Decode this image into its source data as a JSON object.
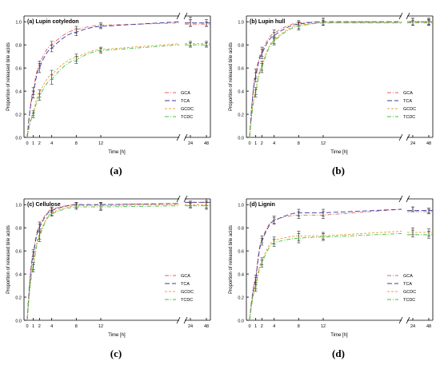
{
  "chart_data": [
    {
      "type": "line",
      "title": "(a) Lupin cotyledon",
      "caption": "(a)",
      "xlabel": "Time [h]",
      "ylabel": "Proportion of released bile acids",
      "x_ticks": [
        "0",
        "1",
        "2",
        "4",
        "8",
        "12",
        "24",
        "48"
      ],
      "y_ticks": [
        "0.0",
        "0.2",
        "0.4",
        "0.6",
        "0.8",
        "1.0"
      ],
      "ylim": [
        0,
        1.05
      ],
      "axis_break": true,
      "legend_position": "bottom-right",
      "series": [
        {
          "name": "GCA",
          "color": "#e0605e",
          "dash": "dash-dot",
          "x": [
            0,
            1,
            2,
            4,
            8,
            12,
            24,
            48
          ],
          "y": [
            0.0,
            0.4,
            0.63,
            0.8,
            0.93,
            0.97,
            0.99,
            0.98
          ],
          "err": [
            0.02,
            0.03,
            0.03,
            0.03,
            0.03,
            0.02,
            0.03,
            0.02
          ]
        },
        {
          "name": "TCA",
          "color": "#3b3b9e",
          "dash": "long-dash",
          "x": [
            0,
            1,
            2,
            4,
            8,
            12,
            24,
            48
          ],
          "y": [
            0.0,
            0.37,
            0.6,
            0.77,
            0.91,
            0.96,
            1.0,
            0.99
          ],
          "err": [
            0.02,
            0.03,
            0.04,
            0.03,
            0.03,
            0.02,
            0.04,
            0.03
          ]
        },
        {
          "name": "GCDC",
          "color": "#f0a030",
          "dash": "short-dash",
          "x": [
            0,
            1,
            2,
            4,
            8,
            12,
            24,
            48
          ],
          "y": [
            0.0,
            0.21,
            0.38,
            0.54,
            0.69,
            0.76,
            0.81,
            0.81
          ],
          "err": [
            0.02,
            0.02,
            0.03,
            0.04,
            0.03,
            0.02,
            0.02,
            0.02
          ]
        },
        {
          "name": "TCDC",
          "color": "#40c040",
          "dash": "dash-dot",
          "x": [
            0,
            1,
            2,
            4,
            8,
            12,
            24,
            48
          ],
          "y": [
            0.0,
            0.19,
            0.35,
            0.5,
            0.67,
            0.75,
            0.8,
            0.8
          ],
          "err": [
            0.02,
            0.02,
            0.03,
            0.04,
            0.03,
            0.02,
            0.02,
            0.02
          ]
        }
      ]
    },
    {
      "type": "line",
      "title": "(b) Lupin hull",
      "caption": "(b)",
      "xlabel": "Time [h]",
      "ylabel": "Proportion of released bile acids",
      "x_ticks": [
        "0",
        "1",
        "2",
        "4",
        "8",
        "12",
        "24",
        "48"
      ],
      "y_ticks": [
        "0.0",
        "0.2",
        "0.4",
        "0.6",
        "0.8",
        "1.0"
      ],
      "ylim": [
        0,
        1.05
      ],
      "axis_break": true,
      "legend_position": "bottom-right",
      "series": [
        {
          "name": "GCA",
          "color": "#e0605e",
          "dash": "dash-dot",
          "x": [
            0,
            1,
            2,
            4,
            8,
            12,
            24,
            48
          ],
          "y": [
            0.0,
            0.55,
            0.74,
            0.9,
            0.99,
            1.0,
            1.0,
            1.0
          ],
          "err": [
            0.02,
            0.04,
            0.04,
            0.03,
            0.02,
            0.03,
            0.03,
            0.03
          ]
        },
        {
          "name": "TCA",
          "color": "#3b3b9e",
          "dash": "long-dash",
          "x": [
            0,
            1,
            2,
            4,
            8,
            12,
            24,
            48
          ],
          "y": [
            0.0,
            0.52,
            0.72,
            0.88,
            0.98,
            1.0,
            1.0,
            1.0
          ],
          "err": [
            0.02,
            0.04,
            0.04,
            0.03,
            0.02,
            0.03,
            0.03,
            0.03
          ]
        },
        {
          "name": "GCDC",
          "color": "#f0a030",
          "dash": "short-dash",
          "x": [
            0,
            1,
            2,
            4,
            8,
            12,
            24,
            48
          ],
          "y": [
            0.0,
            0.4,
            0.62,
            0.84,
            0.97,
            0.99,
            0.99,
            1.0
          ],
          "err": [
            0.02,
            0.03,
            0.04,
            0.03,
            0.03,
            0.02,
            0.02,
            0.02
          ]
        },
        {
          "name": "TCDC",
          "color": "#40c040",
          "dash": "dash-dot",
          "x": [
            0,
            1,
            2,
            4,
            8,
            12,
            24,
            48
          ],
          "y": [
            0.0,
            0.38,
            0.6,
            0.83,
            0.96,
            0.99,
            0.99,
            0.99
          ],
          "err": [
            0.02,
            0.03,
            0.04,
            0.03,
            0.03,
            0.02,
            0.02,
            0.02
          ]
        }
      ]
    },
    {
      "type": "line",
      "title": "(c) Cellulose",
      "caption": "(c)",
      "xlabel": "Time [h]",
      "ylabel": "Proportion of released bile acids",
      "x_ticks": [
        "0",
        "1",
        "2",
        "4",
        "8",
        "12",
        "24",
        "48"
      ],
      "y_ticks": [
        "0.0",
        "0.2",
        "0.4",
        "0.6",
        "0.8",
        "1.0"
      ],
      "ylim": [
        0,
        1.05
      ],
      "axis_break": true,
      "legend_position": "bottom-right",
      "series": [
        {
          "name": "GCA",
          "color": "#e0605e",
          "dash": "dash-dot",
          "x": [
            0,
            1,
            2,
            4,
            8,
            12,
            24,
            48
          ],
          "y": [
            0.0,
            0.58,
            0.82,
            0.96,
            1.0,
            1.0,
            1.01,
            1.02
          ],
          "err": [
            0.02,
            0.03,
            0.03,
            0.02,
            0.02,
            0.02,
            0.02,
            0.03
          ]
        },
        {
          "name": "TCA",
          "color": "#3b3b9e",
          "dash": "long-dash",
          "x": [
            0,
            1,
            2,
            4,
            8,
            12,
            24,
            48
          ],
          "y": [
            0.0,
            0.56,
            0.8,
            0.95,
            1.0,
            1.0,
            1.01,
            1.02
          ],
          "err": [
            0.02,
            0.03,
            0.03,
            0.02,
            0.02,
            0.02,
            0.02,
            0.03
          ]
        },
        {
          "name": "GCDC",
          "color": "#f0a030",
          "dash": "short-dash",
          "x": [
            0,
            1,
            2,
            4,
            8,
            12,
            24,
            48
          ],
          "y": [
            0.0,
            0.47,
            0.74,
            0.93,
            0.99,
            0.99,
            1.0,
            1.0
          ],
          "err": [
            0.02,
            0.03,
            0.04,
            0.02,
            0.02,
            0.03,
            0.02,
            0.03
          ]
        },
        {
          "name": "TCDC",
          "color": "#40c040",
          "dash": "dash-dot",
          "x": [
            0,
            1,
            2,
            4,
            8,
            12,
            24,
            48
          ],
          "y": [
            0.0,
            0.45,
            0.72,
            0.92,
            0.98,
            0.98,
            0.99,
            0.99
          ],
          "err": [
            0.02,
            0.03,
            0.04,
            0.02,
            0.02,
            0.03,
            0.02,
            0.03
          ]
        }
      ]
    },
    {
      "type": "line",
      "title": "(d) Lignin",
      "caption": "(d)",
      "xlabel": "Time [h]",
      "ylabel": "Proportion of released bile acids",
      "x_ticks": [
        "0",
        "1",
        "2",
        "4",
        "8",
        "12",
        "24",
        "48"
      ],
      "y_ticks": [
        "0.0",
        "0.2",
        "0.4",
        "0.6",
        "0.8",
        "1.0"
      ],
      "ylim": [
        0,
        1.05
      ],
      "axis_break": true,
      "legend_position": "bottom-right",
      "series": [
        {
          "name": "GCA",
          "color": "#e0605e",
          "dash": "dash-dot",
          "x": [
            0,
            1,
            2,
            4,
            8,
            12,
            24,
            48
          ],
          "y": [
            0.0,
            0.36,
            0.7,
            0.87,
            0.91,
            0.91,
            0.96,
            0.94
          ],
          "err": [
            0.02,
            0.03,
            0.03,
            0.03,
            0.03,
            0.03,
            0.02,
            0.02
          ]
        },
        {
          "name": "TCA",
          "color": "#3b3b9e",
          "dash": "long-dash",
          "x": [
            0,
            1,
            2,
            4,
            8,
            12,
            24,
            48
          ],
          "y": [
            0.0,
            0.34,
            0.68,
            0.86,
            0.93,
            0.93,
            0.96,
            0.95
          ],
          "err": [
            0.02,
            0.03,
            0.03,
            0.03,
            0.03,
            0.03,
            0.02,
            0.02
          ]
        },
        {
          "name": "GCDC",
          "color": "#f0a030",
          "dash": "short-dash",
          "x": [
            0,
            1,
            2,
            4,
            8,
            12,
            24,
            48
          ],
          "y": [
            0.0,
            0.3,
            0.51,
            0.69,
            0.73,
            0.73,
            0.77,
            0.76
          ],
          "err": [
            0.02,
            0.03,
            0.03,
            0.03,
            0.04,
            0.03,
            0.03,
            0.03
          ]
        },
        {
          "name": "TCDC",
          "color": "#40c040",
          "dash": "dash-dot",
          "x": [
            0,
            1,
            2,
            4,
            8,
            12,
            24,
            48
          ],
          "y": [
            0.0,
            0.28,
            0.49,
            0.67,
            0.71,
            0.72,
            0.75,
            0.74
          ],
          "err": [
            0.02,
            0.03,
            0.03,
            0.03,
            0.04,
            0.03,
            0.03,
            0.03
          ]
        }
      ]
    }
  ]
}
